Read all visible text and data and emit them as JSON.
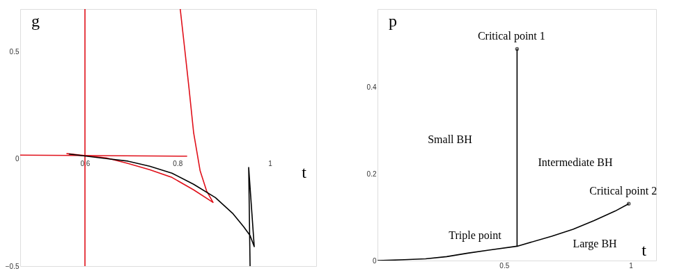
{
  "chart_data": [
    {
      "type": "line",
      "xlabel": "t",
      "ylabel": "g",
      "xlim": [
        0.46,
        1.1
      ],
      "ylim": [
        -0.5,
        0.7
      ],
      "xticks": [
        0.6,
        0.8,
        1
      ],
      "yticks": [
        {
          "value": -0.5,
          "label": "−0.5"
        },
        0,
        0.5
      ],
      "grid": false,
      "marker": "none",
      "line_style": "solid",
      "series": [
        {
          "color": "#e0101a",
          "x": [
            0.561,
            0.646,
            0.693,
            0.74,
            0.788,
            0.835,
            0.877,
            0.863,
            0.849,
            0.835,
            0.825,
            0.816,
            0.806
          ],
          "values": [
            0.025,
            0.005,
            -0.021,
            -0.05,
            -0.086,
            -0.144,
            -0.203,
            -0.149,
            -0.055,
            0.122,
            0.33,
            0.507,
            0.7
          ]
        },
        {
          "color": "#e0101a",
          "x": [
            0.46,
            0.82
          ],
          "values": [
            0.018,
            0.013
          ]
        },
        {
          "color": "#e0101a",
          "x": [
            0.6,
            0.6
          ],
          "values": [
            -0.5,
            0.7
          ]
        },
        {
          "color": "#000000",
          "x": [
            0.566,
            0.646,
            0.693,
            0.74,
            0.788,
            0.835,
            0.882,
            0.919,
            0.943,
            0.957,
            0.966,
            0.954,
            0.957
          ],
          "values": [
            0.023,
            0.002,
            -0.01,
            -0.034,
            -0.066,
            -0.118,
            -0.18,
            -0.253,
            -0.316,
            -0.357,
            -0.409,
            -0.04,
            -0.5
          ]
        }
      ]
    },
    {
      "type": "line",
      "xlabel": "t",
      "ylabel": "p",
      "xlim": [
        0,
        1.1
      ],
      "ylim": [
        0,
        0.58
      ],
      "xticks": [
        0.5,
        1
      ],
      "yticks": [
        0,
        0.2,
        0.4
      ],
      "grid": false,
      "marker": "none",
      "line_style": "solid",
      "series": [
        {
          "color": "#000000",
          "x": [
            0,
            0.106,
            0.19,
            0.273,
            0.356,
            0.439,
            0.551,
            0.688,
            0.772,
            0.855,
            0.938,
            0.992
          ],
          "values": [
            0,
            0.002,
            0.004,
            0.009,
            0.017,
            0.024,
            0.033,
            0.056,
            0.072,
            0.092,
            0.114,
            0.131
          ]
        },
        {
          "color": "#000000",
          "x": [
            0.551,
            0.551
          ],
          "values": [
            0.033,
            0.488
          ]
        },
        {
          "type": "scatter",
          "marker": "circle",
          "color": "#000000",
          "x": [
            0.551,
            0.992
          ],
          "values": [
            0.488,
            0.131
          ]
        }
      ],
      "annotations": [
        {
          "text": "Critical point 1",
          "x": 0.551,
          "y": 0.488
        },
        {
          "text": "Critical point 2",
          "x": 0.992,
          "y": 0.131
        },
        "Small BH",
        "Intermediate BH",
        "Triple point",
        "Large BH"
      ]
    }
  ]
}
